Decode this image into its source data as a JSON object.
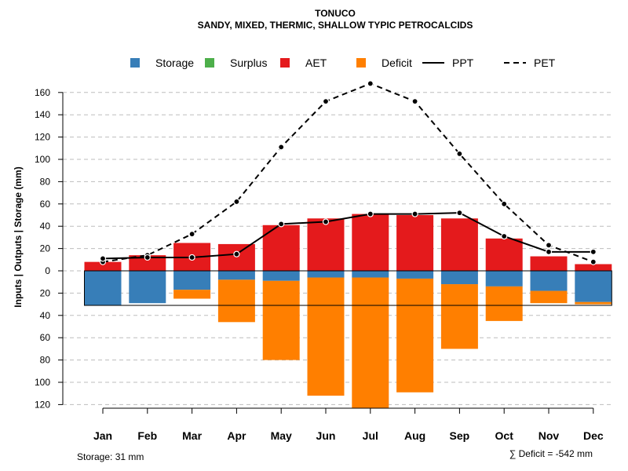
{
  "chart_data": {
    "type": "bar",
    "title": "TONUCO",
    "subtitle": "SANDY, MIXED, THERMIC, SHALLOW TYPIC PETROCALCIDS",
    "ylabel": "Inputs | Outputs | Storage    (mm)",
    "categories": [
      "Jan",
      "Feb",
      "Mar",
      "Apr",
      "May",
      "Jun",
      "Jul",
      "Aug",
      "Sep",
      "Oct",
      "Nov",
      "Dec"
    ],
    "y_ticks_up": [
      0,
      20,
      40,
      60,
      80,
      100,
      120,
      140,
      160
    ],
    "y_ticks_down": [
      20,
      40,
      60,
      80,
      100,
      120
    ],
    "ylim": [
      -122,
      168
    ],
    "legend": [
      {
        "key": "storage",
        "label": "Storage",
        "type": "box",
        "color": "#377EB8"
      },
      {
        "key": "surplus",
        "label": "Surplus",
        "type": "box",
        "color": "#4DAF4A"
      },
      {
        "key": "aet",
        "label": "AET",
        "type": "box",
        "color": "#E41A1C"
      },
      {
        "key": "deficit",
        "label": "Deficit",
        "type": "box",
        "color": "#FF7F00"
      },
      {
        "key": "ppt",
        "label": "PPT",
        "type": "solid",
        "color": "#000000"
      },
      {
        "key": "pet",
        "label": "PET",
        "type": "dashed",
        "color": "#000000"
      }
    ],
    "series": [
      {
        "name": "AET",
        "color": "#E41A1C",
        "values": [
          8,
          14,
          25,
          24,
          41,
          47,
          51,
          50,
          47,
          29,
          13,
          6
        ]
      },
      {
        "name": "Storage",
        "color": "#377EB8",
        "values": [
          31,
          29,
          17,
          8,
          9,
          6,
          6,
          7,
          12,
          14,
          18,
          28
        ]
      },
      {
        "name": "Deficit",
        "color": "#FF7F00",
        "values": [
          0,
          0,
          8,
          38,
          71,
          106,
          117,
          102,
          58,
          31,
          11,
          2
        ]
      },
      {
        "name": "PPT",
        "color": "#000000",
        "values": [
          11,
          12,
          12,
          15,
          42,
          44,
          51,
          51,
          52,
          31,
          17,
          17
        ]
      },
      {
        "name": "PET",
        "color": "#000000",
        "values": [
          8,
          14,
          33,
          62,
          111,
          152,
          168,
          152,
          105,
          60,
          23,
          8
        ]
      }
    ],
    "storage_capacity": 31,
    "footer_left": "Storage: 31 mm",
    "footer_right": "∑ Deficit = -542 mm"
  }
}
